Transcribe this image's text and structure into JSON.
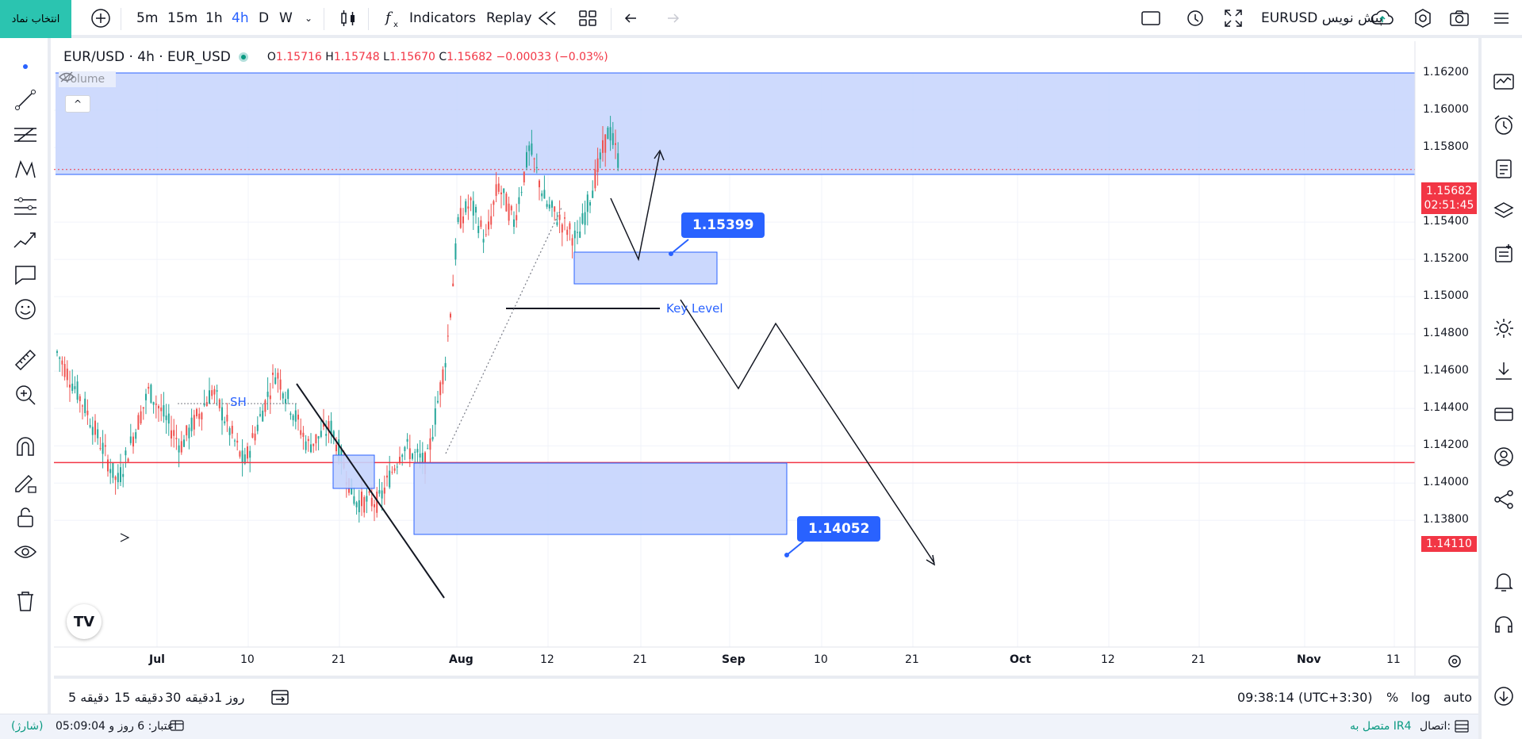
{
  "symbol_button": "انتخاب نماد",
  "topbar": {
    "intervals": [
      "5m",
      "15m",
      "1h",
      "4h",
      "D",
      "W"
    ],
    "active_interval": "4h",
    "indicators_label": "Indicators",
    "replay_label": "Replay",
    "right_symbol": "EURUSD پیش نویس"
  },
  "legend": {
    "title": "EUR/USD · 4h · EUR_USD",
    "open_label": "O",
    "open": "1.15716",
    "high_label": "H",
    "high": "1.15748",
    "low_label": "L",
    "low": "1.15670",
    "close_label": "C",
    "close": "1.15682",
    "change": "−0.00033 (−0.03%)",
    "volume_label": "Volume"
  },
  "price_axis": [
    "1.16200",
    "1.16000",
    "1.15800",
    "1.15400",
    "1.15200",
    "1.15000",
    "1.14800",
    "1.14600",
    "1.14400",
    "1.14200",
    "1.14000",
    "1.13800"
  ],
  "current_price": {
    "price": "1.15682",
    "countdown": "02:51:45",
    "color": "#f23645"
  },
  "line_price": {
    "price": "1.14110",
    "color": "#f23645"
  },
  "time_axis": [
    "Jul",
    "10",
    "21",
    "Aug",
    "12",
    "21",
    "Sep",
    "10",
    "21",
    "Oct",
    "12",
    "21",
    "Nov",
    "11"
  ],
  "annotations": {
    "callout_top": "1.15399",
    "callout_bottom": "1.14052",
    "key_level": "Key Level",
    "sh": "SH"
  },
  "bottombar": {
    "timeframes": [
      "5 دقیقه",
      "15 دقیقه",
      "30 دقیقه",
      "1 روز"
    ],
    "clock": "09:38:14 (UTC+3:30)",
    "percent": "%",
    "log": "log",
    "auto": "auto"
  },
  "statusbar": {
    "credit": "اعتبار: 6 روز و 05:09:04",
    "charge": "(شارژ)",
    "connection_label": "اتصال:",
    "connection_value": "متصل به IR4"
  },
  "colors": {
    "accent": "#2962ff",
    "zone_fill": "#c5d4fd",
    "up": "#26a69a",
    "down": "#ef5350"
  }
}
